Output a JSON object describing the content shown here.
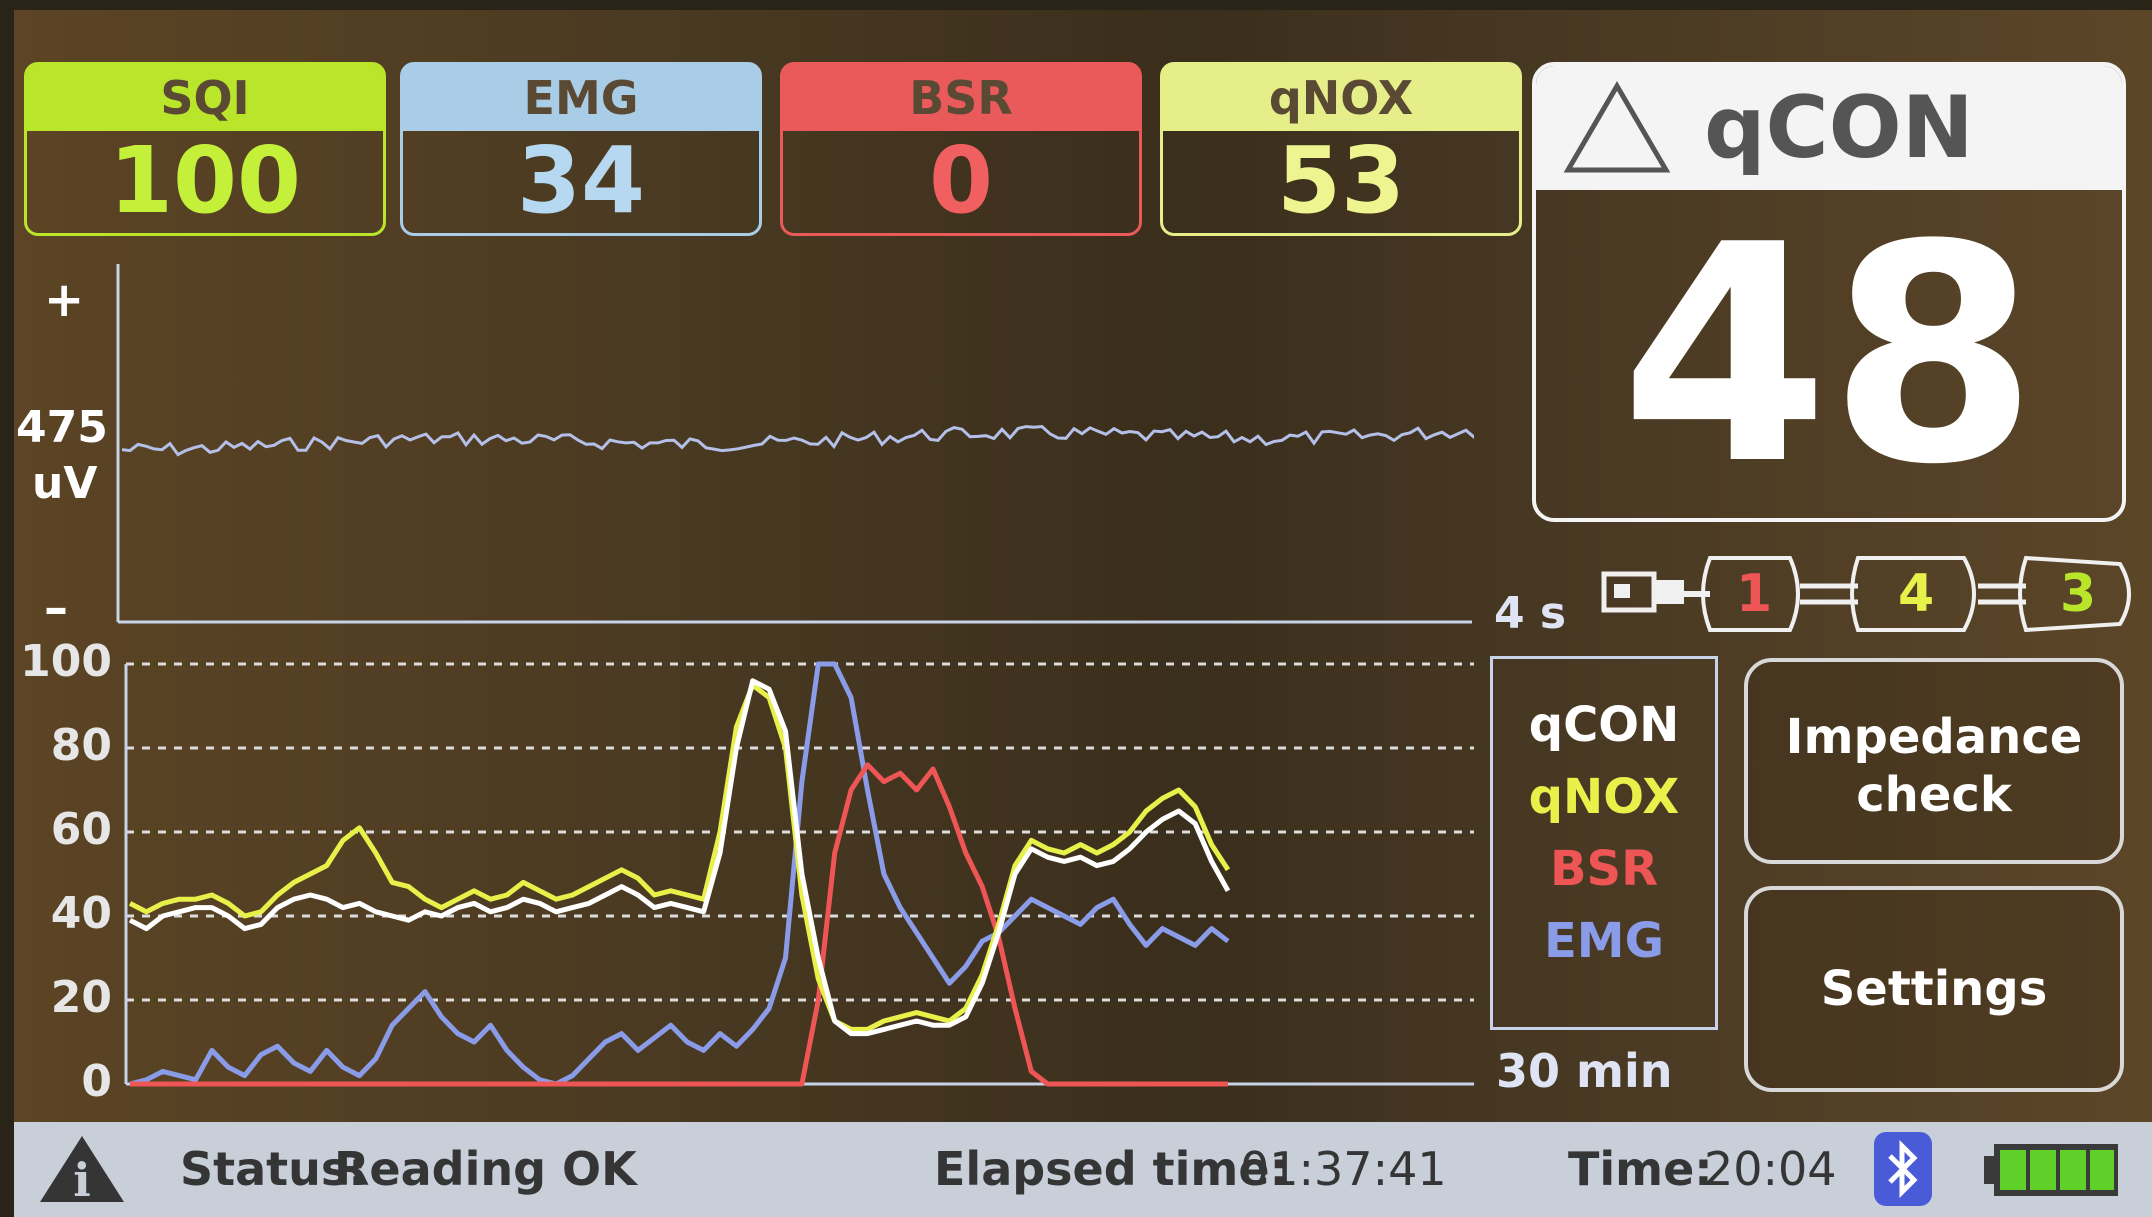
{
  "tiles": [
    {
      "key": "sqi",
      "label": "SQI",
      "value": "100",
      "color": "#b9e52a",
      "text": "#c5f03a"
    },
    {
      "key": "emg",
      "label": "EMG",
      "value": "34",
      "color": "#a9cde6",
      "text": "#b6d8f0"
    },
    {
      "key": "bsr",
      "label": "BSR",
      "value": "0",
      "color": "#ea5a5a",
      "text": "#f06060"
    },
    {
      "key": "qnox",
      "label": "qNOX",
      "value": "53",
      "color": "#e6ee8a",
      "text": "#eef590"
    }
  ],
  "qcon": {
    "title": "qCON",
    "value": "48"
  },
  "eeg": {
    "plus": "+",
    "minus": "–",
    "scale_value": "475",
    "scale_unit": "uV",
    "time_label": "4 s"
  },
  "electrodes": {
    "e1": "1",
    "e2": "4",
    "e3": "3"
  },
  "trend": {
    "ticks": [
      "100",
      "80",
      "60",
      "40",
      "20",
      "0"
    ],
    "time_label": "30 min"
  },
  "legend": {
    "qcon": "qCON",
    "qnox": "qNOX",
    "bsr": "BSR",
    "emg": "EMG"
  },
  "buttons": {
    "impedance_line1": "Impedance",
    "impedance_line2": "check",
    "settings": "Settings"
  },
  "status": {
    "status_label": "Status:",
    "status_value": "Reading OK",
    "elapsed_label": "Elapsed time:",
    "elapsed_value": "01:37:41",
    "time_label": "Time:",
    "time_value": "20:04"
  },
  "colors": {
    "qcon": "#ffffff",
    "qnox": "#e8f04a",
    "bsr": "#ee5555",
    "emg": "#8a9ce8"
  },
  "icons": [
    "warning-triangle-icon",
    "bluetooth-icon",
    "battery-icon",
    "connector-icon"
  ],
  "chart_data": {
    "type": "line",
    "x_range": [
      0,
      30
    ],
    "ylim": [
      0,
      100
    ],
    "ticks": [
      0,
      20,
      40,
      60,
      80,
      100
    ],
    "series": [
      {
        "name": "qCON",
        "values": [
          39,
          37,
          40,
          41,
          42,
          42,
          40,
          37,
          38,
          42,
          44,
          45,
          44,
          42,
          43,
          41,
          40,
          39,
          41,
          40,
          42,
          43,
          41,
          42,
          44,
          43,
          41,
          42,
          43,
          45,
          47,
          45,
          42,
          43,
          42,
          41,
          55,
          80,
          96,
          94,
          84,
          50,
          30,
          15,
          12,
          12,
          13,
          14,
          15,
          14,
          14,
          16,
          24,
          36,
          50,
          56,
          54,
          53,
          54,
          52,
          53,
          56,
          60,
          63,
          65,
          62,
          53,
          46
        ]
      },
      {
        "name": "qNOX",
        "values": [
          43,
          41,
          43,
          44,
          44,
          45,
          43,
          40,
          41,
          45,
          48,
          50,
          52,
          58,
          61,
          55,
          48,
          47,
          44,
          42,
          44,
          46,
          44,
          45,
          48,
          46,
          44,
          45,
          47,
          49,
          51,
          49,
          45,
          46,
          45,
          44,
          60,
          85,
          95,
          92,
          80,
          45,
          25,
          15,
          13,
          13,
          15,
          16,
          17,
          16,
          15,
          18,
          26,
          38,
          52,
          58,
          56,
          55,
          57,
          55,
          57,
          60,
          65,
          68,
          70,
          66,
          57,
          51
        ]
      },
      {
        "name": "BSR",
        "values": [
          0,
          0,
          0,
          0,
          0,
          0,
          0,
          0,
          0,
          0,
          0,
          0,
          0,
          0,
          0,
          0,
          0,
          0,
          0,
          0,
          0,
          0,
          0,
          0,
          0,
          0,
          0,
          0,
          0,
          0,
          0,
          0,
          0,
          0,
          0,
          0,
          0,
          0,
          0,
          0,
          0,
          0,
          20,
          55,
          70,
          76,
          72,
          74,
          70,
          75,
          66,
          55,
          47,
          35,
          18,
          3,
          0,
          0,
          0,
          0,
          0,
          0,
          0,
          0,
          0,
          0,
          0,
          0
        ]
      },
      {
        "name": "EMG",
        "values": [
          0,
          1,
          3,
          2,
          1,
          8,
          4,
          2,
          7,
          9,
          5,
          3,
          8,
          4,
          2,
          6,
          14,
          18,
          22,
          16,
          12,
          10,
          14,
          8,
          4,
          1,
          0,
          2,
          6,
          10,
          12,
          8,
          11,
          14,
          10,
          8,
          12,
          9,
          13,
          18,
          30,
          72,
          100,
          100,
          92,
          70,
          50,
          42,
          36,
          30,
          24,
          28,
          34,
          36,
          40,
          44,
          42,
          40,
          38,
          42,
          44,
          38,
          33,
          37,
          35,
          33,
          37,
          34
        ]
      }
    ]
  }
}
